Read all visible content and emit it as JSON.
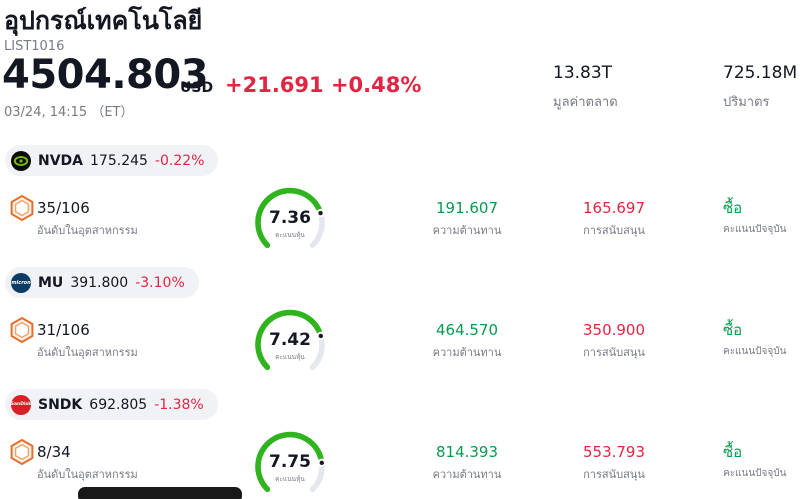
{
  "header": {
    "title": "อุปกรณ์เทคโนโลยี",
    "list_id": "LIST1016",
    "price": "4504.803",
    "currency": "USD",
    "change": "+21.691 +0.48%",
    "datetime": "03/24, 14:15 （ET）",
    "market_cap": {
      "value": "13.83T",
      "label": "มูลค่าตลาด"
    },
    "volume": {
      "value": "725.18M",
      "label": "ปริมาตร"
    }
  },
  "labels": {
    "rank": "อันดับในอุตสาหกรรม",
    "gauge": "คะแนนหุ้น",
    "resistance": "ความต้านทาน",
    "support": "การสนับสนุน",
    "signal": "คะแนนปัจจุบัน"
  },
  "rows": [
    {
      "ticker": "NVDA",
      "price": "175.245",
      "change": "-0.22%",
      "logo_text": "",
      "rank": "35/106",
      "score": 7.36,
      "resistance": "191.607",
      "support": "165.697",
      "signal": "ซื้อ"
    },
    {
      "ticker": "MU",
      "price": "391.800",
      "change": "-3.10%",
      "logo_text": "micron",
      "rank": "31/106",
      "score": 7.42,
      "resistance": "464.570",
      "support": "350.900",
      "signal": "ซื้อ"
    },
    {
      "ticker": "SNDK",
      "price": "692.805",
      "change": "-1.38%",
      "logo_text": "SanDisk",
      "rank": "8/34",
      "score": 7.75,
      "resistance": "814.393",
      "support": "553.793",
      "signal": "ซื้อ"
    }
  ],
  "gauge_scale_max": 10,
  "colors": {
    "text": "#131722",
    "muted": "#787b86",
    "red": "#e22542",
    "green": "#0a9950",
    "gauge-green": "#2fb41e",
    "pill": "#f0f2f5",
    "track": "#e4e7ee"
  }
}
